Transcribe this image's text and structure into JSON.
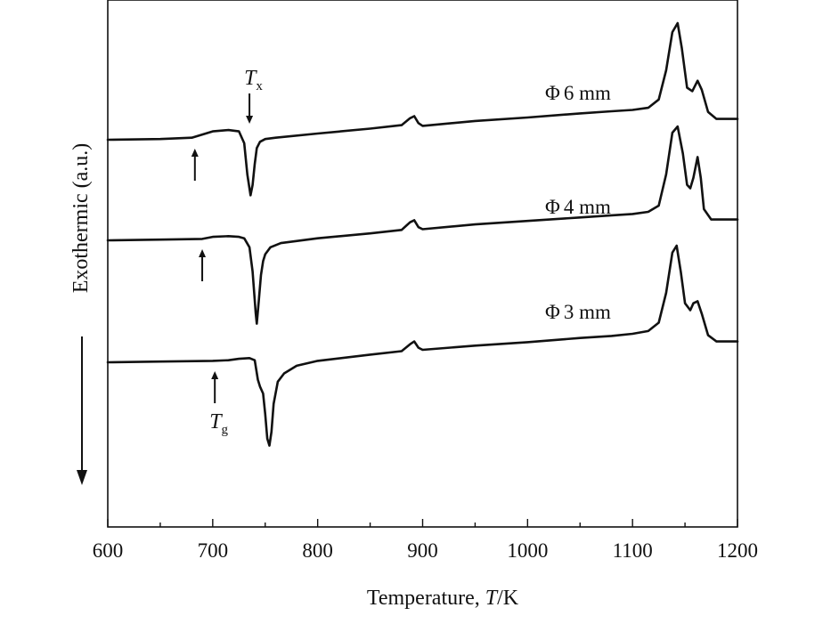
{
  "chart_data": {
    "type": "line",
    "title": "",
    "xlabel": "Temperature, ",
    "xlabel_italic": "T",
    "xlabel_unit": "/K",
    "ylabel": "Exothermic (a.u.)",
    "xlim": [
      600,
      1200
    ],
    "x_ticks": [
      "600",
      "700",
      "800",
      "900",
      "1000",
      "1100",
      "1200"
    ],
    "grid": false,
    "legend": "none",
    "series": [
      {
        "name": "Φ6 mm",
        "label_glyph": "Φ",
        "label_text": "6 mm",
        "x": [
          600,
          650,
          680,
          700,
          715,
          725,
          730,
          733,
          736,
          738,
          740,
          742,
          745,
          750,
          760,
          800,
          850,
          880,
          888,
          892,
          896,
          900,
          950,
          1000,
          1050,
          1080,
          1100,
          1115,
          1125,
          1132,
          1138,
          1143,
          1147,
          1152,
          1157,
          1162,
          1166,
          1172,
          1180,
          1200
        ],
        "y": [
          0.0,
          0.1,
          0.3,
          1.2,
          1.4,
          1.2,
          -0.5,
          -5.0,
          -8.0,
          -6.5,
          -3.5,
          -1.2,
          -0.3,
          0.1,
          0.3,
          0.9,
          1.6,
          2.1,
          3.1,
          3.4,
          2.4,
          2.0,
          2.7,
          3.2,
          3.8,
          4.1,
          4.3,
          4.6,
          5.8,
          10.0,
          15.5,
          16.8,
          13.2,
          7.5,
          7.0,
          8.5,
          7.2,
          4.0,
          3.0,
          3.0
        ]
      },
      {
        "name": "Φ4 mm",
        "label_glyph": "Φ",
        "label_text": "4 mm",
        "x": [
          600,
          650,
          690,
          700,
          715,
          725,
          730,
          735,
          738,
          741,
          742,
          744,
          746,
          748,
          750,
          755,
          765,
          800,
          850,
          880,
          888,
          892,
          896,
          900,
          950,
          1000,
          1050,
          1080,
          1100,
          1115,
          1125,
          1132,
          1138,
          1143,
          1148,
          1152,
          1155,
          1158,
          1162,
          1165,
          1168,
          1175,
          1200
        ],
        "y": [
          0.0,
          0.1,
          0.2,
          0.5,
          0.6,
          0.5,
          0.3,
          -1.0,
          -4.5,
          -10.5,
          -12.0,
          -8.5,
          -5.0,
          -3.0,
          -2.0,
          -1.0,
          -0.4,
          0.3,
          1.0,
          1.5,
          2.6,
          2.9,
          1.9,
          1.6,
          2.3,
          2.8,
          3.3,
          3.6,
          3.8,
          4.1,
          5.0,
          9.5,
          15.5,
          16.4,
          12.5,
          8.0,
          7.5,
          9.0,
          12.0,
          9.0,
          4.5,
          3.0,
          3.0
        ]
      },
      {
        "name": "Φ3 mm",
        "label_glyph": "Φ",
        "label_text": "3 mm",
        "x": [
          600,
          650,
          700,
          715,
          725,
          735,
          740,
          743,
          745,
          748,
          750,
          752,
          754,
          756,
          758,
          762,
          768,
          780,
          800,
          850,
          880,
          888,
          892,
          896,
          900,
          950,
          1000,
          1050,
          1080,
          1100,
          1115,
          1125,
          1132,
          1138,
          1142,
          1146,
          1150,
          1155,
          1158,
          1162,
          1166,
          1172,
          1180,
          1200
        ],
        "y": [
          0.0,
          0.1,
          0.2,
          0.3,
          0.5,
          0.6,
          0.3,
          -2.5,
          -3.5,
          -4.5,
          -7.5,
          -11.0,
          -12.0,
          -10.0,
          -6.0,
          -2.8,
          -1.6,
          -0.5,
          0.2,
          1.1,
          1.6,
          2.6,
          3.0,
          2.1,
          1.8,
          2.4,
          2.9,
          3.5,
          3.8,
          4.1,
          4.5,
          5.7,
          10.0,
          15.8,
          16.8,
          13.0,
          8.5,
          7.5,
          8.5,
          8.8,
          7.0,
          3.9,
          3.0,
          3.0
        ]
      }
    ],
    "annotations": [
      {
        "label": "T",
        "sub": "x",
        "series": "Φ6 mm",
        "x": 735,
        "direction": "down"
      },
      {
        "label": "",
        "series": "Φ6 mm",
        "x": 683,
        "direction": "up"
      },
      {
        "label": "",
        "series": "Φ4 mm",
        "x": 690,
        "direction": "up"
      },
      {
        "label": "T",
        "sub": "g",
        "series": "Φ3 mm",
        "x": 702,
        "direction": "up"
      }
    ],
    "exothermic_arrow": "down"
  }
}
